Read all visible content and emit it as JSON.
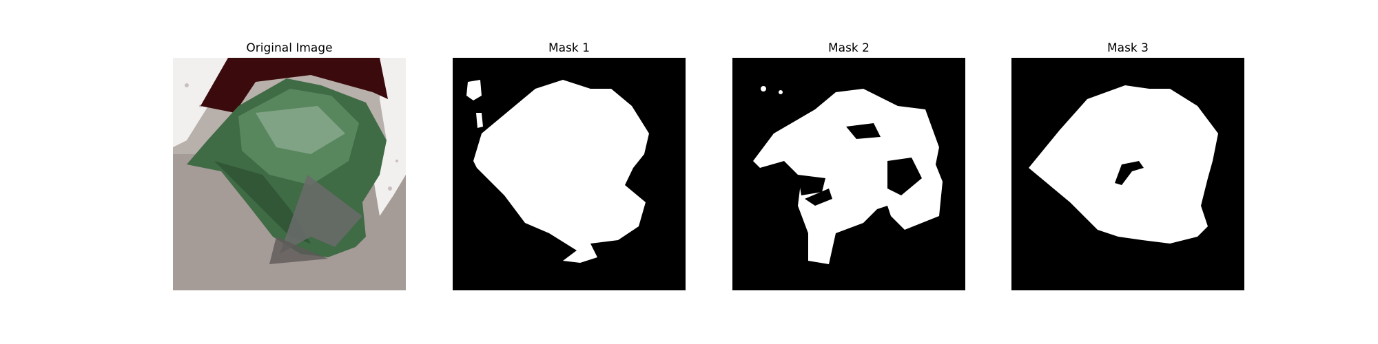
{
  "figure": {
    "panels": [
      {
        "title": "Original Image",
        "image": "leaf-photo"
      },
      {
        "title": "Mask 1",
        "image": "binary-mask"
      },
      {
        "title": "Mask 2",
        "image": "binary-mask"
      },
      {
        "title": "Mask 3",
        "image": "binary-mask"
      }
    ]
  },
  "colors": {
    "figure_background": "#ffffff",
    "mask_background": "#000000",
    "mask_foreground": "#ffffff",
    "leaf_green": "#3f6b45",
    "ground_gray": "#a59b97",
    "dark_red_corner": "#3b0a0c"
  }
}
